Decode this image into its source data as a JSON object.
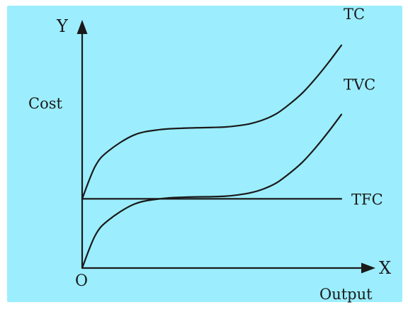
{
  "figure": {
    "background_color": "#ffffff",
    "panel_color": "#9ceefe",
    "ink_color": "#1a1a1a"
  },
  "chart_data": {
    "type": "line",
    "title": "",
    "origin_label": "O",
    "x_axis": {
      "letter": "X",
      "label": "Output"
    },
    "y_axis": {
      "letter": "Y",
      "label": "Cost"
    },
    "xlim": [
      0,
      100
    ],
    "ylim": [
      0,
      100
    ],
    "grid": false,
    "legend": "none",
    "series": [
      {
        "name": "TC",
        "x": [
          0,
          5,
          10,
          20,
          30,
          40,
          50,
          55,
          60,
          65,
          70,
          75,
          80,
          85,
          90,
          95,
          100
        ],
        "y": [
          32,
          47,
          54,
          61.5,
          64,
          64.7,
          65,
          65.2,
          65.8,
          66.8,
          68.6,
          71.4,
          75.8,
          81,
          87.6,
          95,
          103
        ]
      },
      {
        "name": "TVC",
        "x": [
          0,
          5,
          10,
          20,
          30,
          40,
          50,
          55,
          60,
          65,
          70,
          75,
          80,
          85,
          90,
          95,
          100
        ],
        "y": [
          0,
          15,
          22,
          29.5,
          32,
          32.8,
          33,
          33.2,
          33.8,
          34.8,
          36.6,
          39.4,
          43.8,
          49,
          55.6,
          63,
          71
        ]
      },
      {
        "name": "TFC",
        "x": [
          0,
          100
        ],
        "y": [
          32,
          32
        ]
      }
    ]
  }
}
